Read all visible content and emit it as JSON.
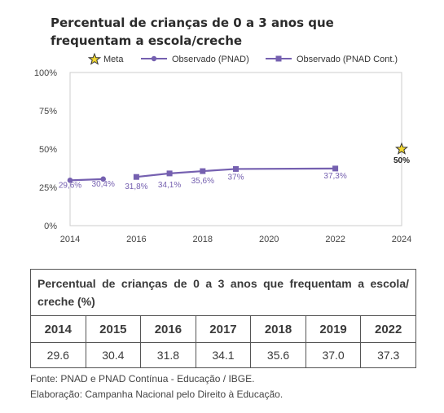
{
  "chart_data": {
    "type": "line",
    "title": "Percentual de crianças de 0 a 3 anos que frequentam a escola/creche",
    "ylim": [
      0,
      100
    ],
    "xlim": [
      2014,
      2024
    ],
    "x_ticks": [
      "2014",
      "2016",
      "2018",
      "2020",
      "2022",
      "2024"
    ],
    "y_ticks": [
      "0%",
      "25%",
      "50%",
      "75%",
      "100%"
    ],
    "grid": false,
    "legend_position": "top",
    "series": [
      {
        "name": "Observado (PNAD)",
        "color": "#7560b0",
        "marker": "circle",
        "points": [
          {
            "x": 2014,
            "y": 29.6,
            "label": "29,6%"
          },
          {
            "x": 2015,
            "y": 30.4,
            "label": "30,4%"
          }
        ]
      },
      {
        "name": "Observado (PNAD Cont.)",
        "color": "#7560b0",
        "marker": "square",
        "points": [
          {
            "x": 2016,
            "y": 31.8,
            "label": "31,8%"
          },
          {
            "x": 2017,
            "y": 34.1,
            "label": "34,1%"
          },
          {
            "x": 2018,
            "y": 35.6,
            "label": "35,6%"
          },
          {
            "x": 2019,
            "y": 37.0,
            "label": "37%"
          },
          {
            "x": 2022,
            "y": 37.3,
            "label": "37,3%"
          }
        ]
      }
    ],
    "target": {
      "name": "Meta",
      "x": 2024,
      "y": 50,
      "label": "50%",
      "color": "#f2d730",
      "marker": "star"
    }
  },
  "table": {
    "title": "Percentual de crianças de 0 a 3 anos que frequentam a escola/ creche (%)",
    "years": [
      "2014",
      "2015",
      "2016",
      "2017",
      "2018",
      "2019",
      "2022"
    ],
    "values": [
      "29.6",
      "30.4",
      "31.8",
      "34.1",
      "35.6",
      "37.0",
      "37.3"
    ]
  },
  "footer": {
    "source": "Fonte: PNAD e PNAD Contínua - Educação / IBGE.",
    "credit": "Elaboração: Campanha Nacional pelo Direito à Educação."
  }
}
